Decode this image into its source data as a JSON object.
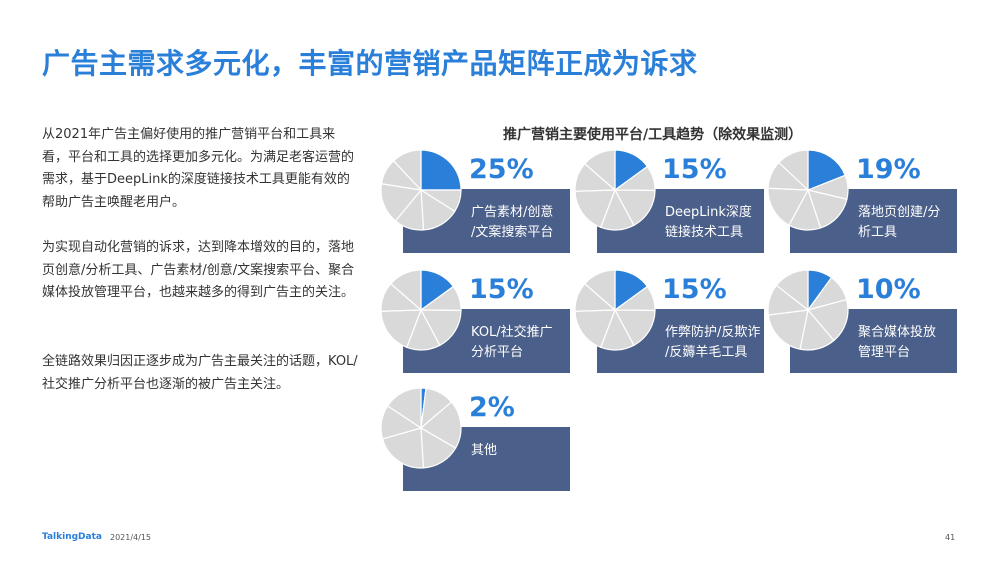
{
  "title": "广告主需求多元化，丰富的营销产品矩阵正成为诉求",
  "paragraphs": [
    "从2021年广告主偏好使用的推广营销平台和工具来看，平台和工具的选择更加多元化。为满足老客运营的需求，基于DeepLink的深度链接技术工具更能有效的帮助广告主唤醒老用户。",
    "为实现自动化营销的诉求，达到降本增效的目的，落地页创意/分析工具、广告素材/创意/文案搜索平台、聚合媒体投放管理平台，也越来越多的得到广告主的关注。",
    "全链路效果归因正逐步成为广告主最关注的话题，KOL/社交推广分析平台也逐渐的被广告主关注。"
  ],
  "colors": {
    "accent": "#2a7fd9",
    "box": "#4a5f89",
    "pie_grey": "#d9d9d9"
  },
  "chart_data": {
    "type": "pie",
    "title": "推广营销主要使用平台/工具趋势（除效果监测）",
    "unit": "%",
    "items": [
      {
        "label": "广告素材/创意/文案搜索平台",
        "label_lines": [
          "广告素材/创意",
          "/文案搜索平台"
        ],
        "value": 25,
        "display": "25%"
      },
      {
        "label": "DeepLink深度链接技术工具",
        "label_lines": [
          "DeepLink深度",
          "链接技术工具"
        ],
        "value": 15,
        "display": "15%"
      },
      {
        "label": "落地页创建/分析工具",
        "label_lines": [
          "落地页创建/分",
          "析工具"
        ],
        "value": 19,
        "display": "19%"
      },
      {
        "label": "KOL/社交推广分析平台",
        "label_lines": [
          "KOL/社交推广",
          "分析平台"
        ],
        "value": 15,
        "display": "15%"
      },
      {
        "label": "作弊防护/反欺诈/反薅羊毛工具",
        "label_lines": [
          "作弊防护/反欺诈",
          "/反薅羊毛工具"
        ],
        "value": 15,
        "display": "15%"
      },
      {
        "label": "聚合媒体投放管理平台",
        "label_lines": [
          "聚合媒体投放",
          "管理平台"
        ],
        "value": 10,
        "display": "10%"
      },
      {
        "label": "其他",
        "label_lines": [
          "其他"
        ],
        "value": 2,
        "display": "2%"
      }
    ]
  },
  "footer": {
    "logo": "TalkingData",
    "date": "2021/4/15",
    "page": "41"
  }
}
